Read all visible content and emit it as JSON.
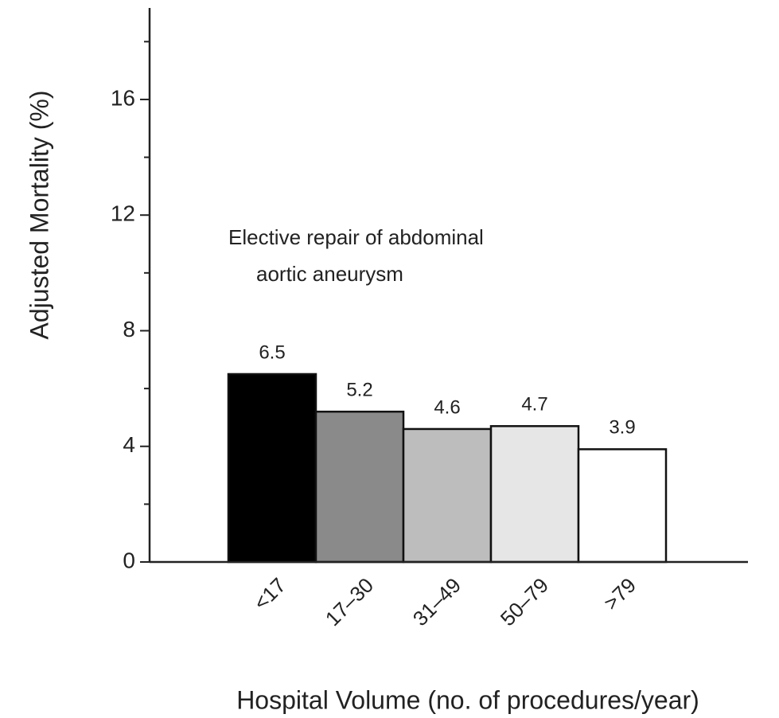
{
  "chart_data": {
    "type": "bar",
    "annotation": [
      "Elective repair of abdominal",
      "aortic aneurysm"
    ],
    "ylabel": "Adjusted Mortality (%)",
    "xlabel": "Hospital Volume (no. of procedures/year)",
    "categories": [
      "<17",
      "17–30",
      "31–49",
      "50–79",
      ">79"
    ],
    "values": [
      6.5,
      5.2,
      4.6,
      4.7,
      3.9
    ],
    "colors": [
      "#000000",
      "#8a8a8a",
      "#bdbdbd",
      "#e6e6e6",
      "#ffffff"
    ],
    "ylim": [
      0,
      19
    ],
    "yticks": [
      0,
      4,
      8,
      12,
      16
    ],
    "minor_yticks": [
      2,
      6,
      10,
      14,
      18
    ],
    "grid": false
  }
}
